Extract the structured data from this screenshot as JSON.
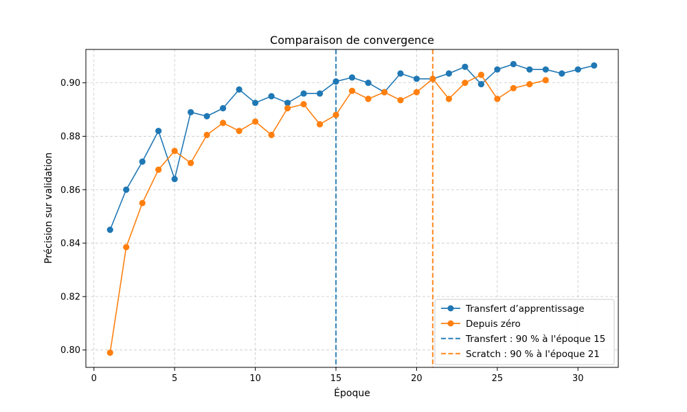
{
  "chart_data": {
    "type": "line",
    "title": "Comparaison de convergence",
    "xlabel": "Époque",
    "ylabel": "Précision sur validation",
    "xlim": [
      -0.5,
      32.5
    ],
    "ylim": [
      0.7935,
      0.9125
    ],
    "xticks": [
      0,
      5,
      10,
      15,
      20,
      25,
      30
    ],
    "xtick_labels": [
      "0",
      "5",
      "10",
      "15",
      "20",
      "25",
      "30"
    ],
    "yticks": [
      0.8,
      0.82,
      0.84,
      0.86,
      0.88,
      0.9
    ],
    "ytick_labels": [
      "0.80",
      "0.82",
      "0.84",
      "0.86",
      "0.88",
      "0.90"
    ],
    "grid": true,
    "legend_position": "bottom-right",
    "series": [
      {
        "name": "Transfert d’apprentissage",
        "color": "#1f77b4",
        "x": [
          1,
          2,
          3,
          4,
          5,
          6,
          7,
          8,
          9,
          10,
          11,
          12,
          13,
          14,
          15,
          16,
          17,
          18,
          19,
          20,
          21,
          22,
          23,
          24,
          25,
          26,
          27,
          28,
          29,
          30,
          31
        ],
        "values": [
          0.845,
          0.86,
          0.8705,
          0.882,
          0.864,
          0.889,
          0.8875,
          0.8905,
          0.8975,
          0.8925,
          0.895,
          0.8925,
          0.896,
          0.896,
          0.9005,
          0.902,
          0.9,
          0.8965,
          0.9035,
          0.9015,
          0.9015,
          0.9035,
          0.906,
          0.8995,
          0.905,
          0.907,
          0.905,
          0.905,
          0.9035,
          0.905,
          0.9065
        ]
      },
      {
        "name": "Depuis zéro",
        "color": "#ff7f0e",
        "x": [
          1,
          2,
          3,
          4,
          5,
          6,
          7,
          8,
          9,
          10,
          11,
          12,
          13,
          14,
          15,
          16,
          17,
          18,
          19,
          20,
          21,
          22,
          23,
          24,
          25,
          26,
          27,
          28
        ],
        "values": [
          0.799,
          0.8385,
          0.855,
          0.8675,
          0.8745,
          0.87,
          0.8805,
          0.885,
          0.882,
          0.8855,
          0.8805,
          0.8905,
          0.892,
          0.8845,
          0.888,
          0.897,
          0.894,
          0.8965,
          0.8935,
          0.8965,
          0.9015,
          0.894,
          0.9,
          0.903,
          0.894,
          0.898,
          0.8995,
          0.901
        ]
      }
    ],
    "reference_lines": [
      {
        "label": "Transfert : 90 % à l'époque 15",
        "x": 15,
        "color": "#1f77b4",
        "style": "dashed"
      },
      {
        "label": "Scratch : 90 % à l'époque 21",
        "x": 21,
        "color": "#ff7f0e",
        "style": "dashed"
      }
    ]
  }
}
